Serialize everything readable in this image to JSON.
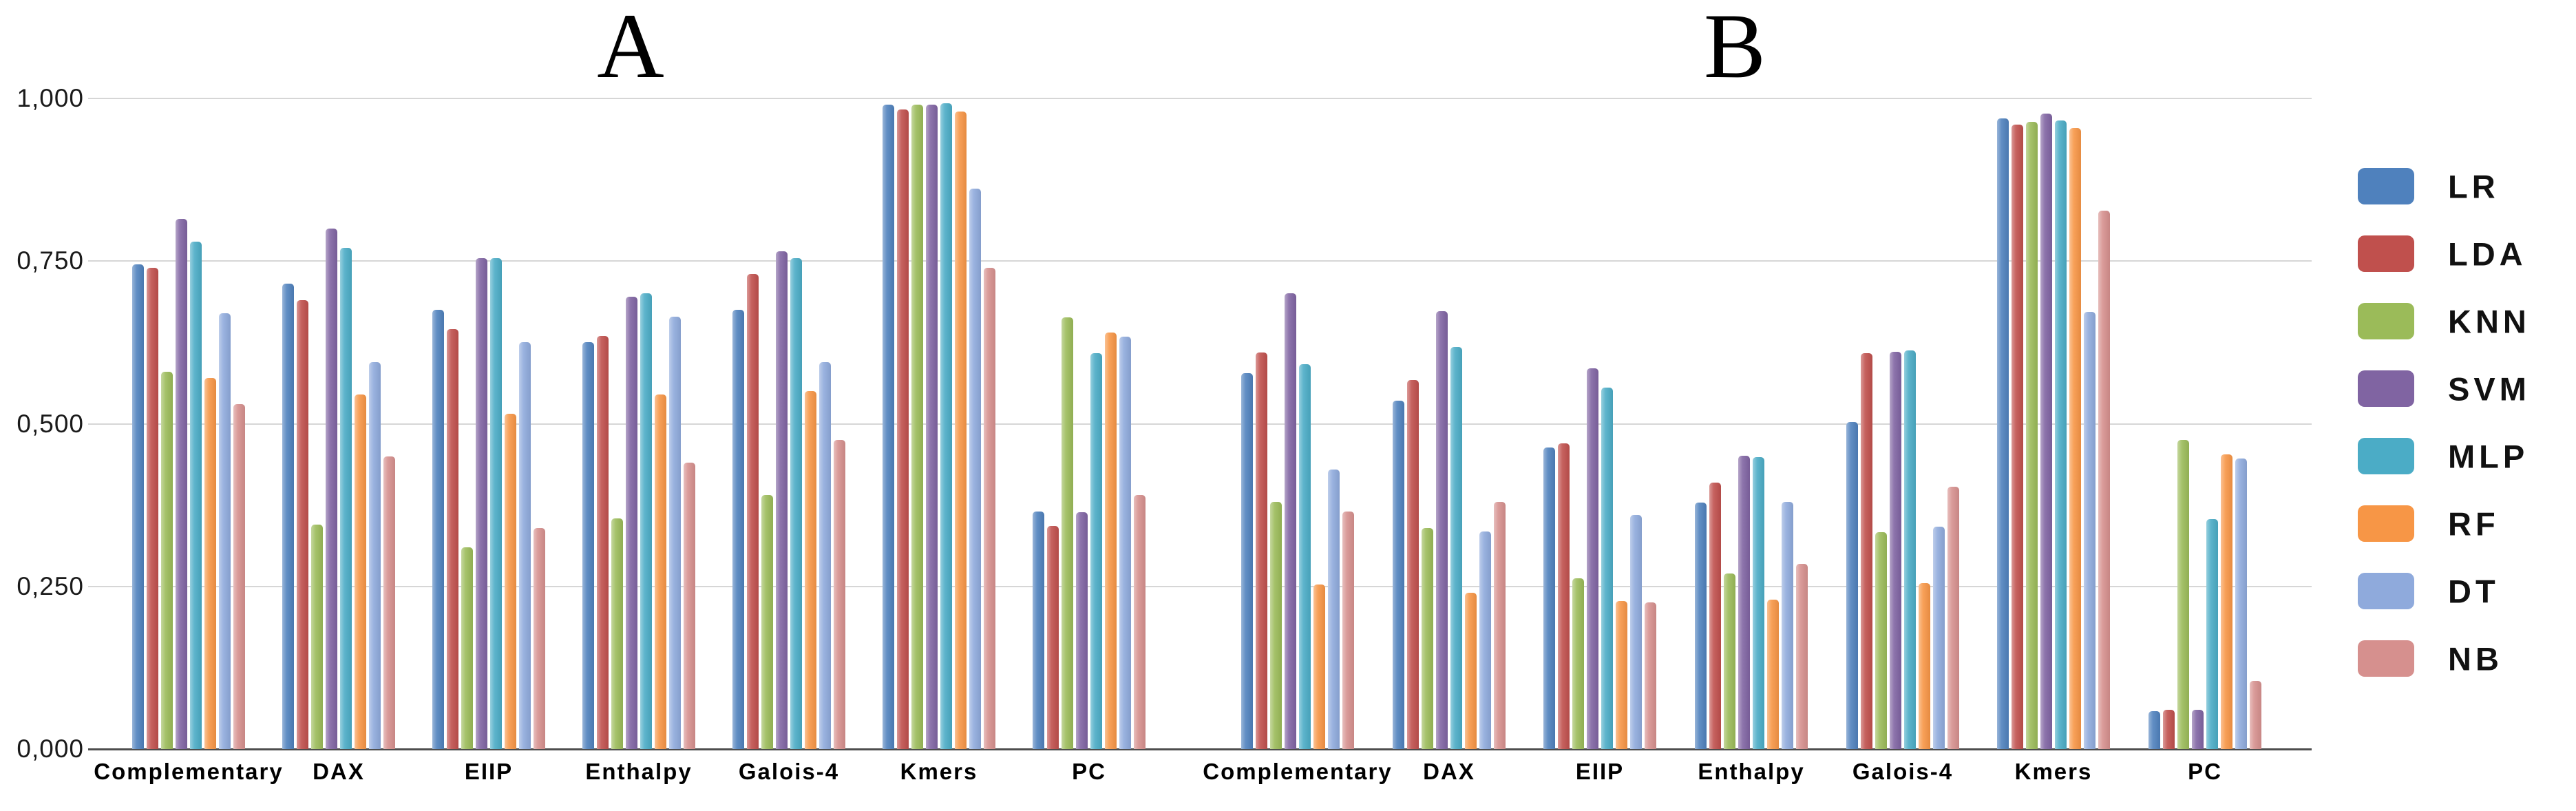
{
  "y_axis": {
    "ticks": [
      {
        "label": "1,000",
        "value": 1.0
      },
      {
        "label": "0,750",
        "value": 0.75
      },
      {
        "label": "0,500",
        "value": 0.5
      },
      {
        "label": "0,250",
        "value": 0.25
      },
      {
        "label": "0,000",
        "value": 0.0
      }
    ],
    "min": 0.0,
    "max": 1.0,
    "gridline_color": "#d6d6d6",
    "baseline_color": "#4d4d4d"
  },
  "legend": {
    "position": "right",
    "items": [
      {
        "label": "LR",
        "color": "#4F81BD"
      },
      {
        "label": "LDA",
        "color": "#C0504D"
      },
      {
        "label": "KNN",
        "color": "#9BBB59"
      },
      {
        "label": "SVM",
        "color": "#8064A2"
      },
      {
        "label": "MLP",
        "color": "#4BACC6"
      },
      {
        "label": "RF",
        "color": "#F79646"
      },
      {
        "label": "DT",
        "color": "#8FAADC"
      },
      {
        "label": "NB",
        "color": "#D6908E"
      }
    ]
  },
  "chart_data": [
    {
      "type": "bar",
      "title": "A",
      "categories": [
        "Complementary",
        "DAX",
        "EIIP",
        "Enthalpy",
        "Galois-4",
        "Kmers",
        "PC"
      ],
      "series": [
        {
          "name": "LR",
          "color": "#4F81BD",
          "values": [
            0.745,
            0.715,
            0.675,
            0.625,
            0.675,
            0.99,
            0.365
          ]
        },
        {
          "name": "LDA",
          "color": "#C0504D",
          "values": [
            0.74,
            0.69,
            0.645,
            0.635,
            0.73,
            0.983,
            0.343
          ]
        },
        {
          "name": "KNN",
          "color": "#9BBB59",
          "values": [
            0.58,
            0.345,
            0.31,
            0.355,
            0.39,
            0.99,
            0.663
          ]
        },
        {
          "name": "SVM",
          "color": "#8064A2",
          "values": [
            0.815,
            0.8,
            0.755,
            0.695,
            0.765,
            0.99,
            0.364
          ]
        },
        {
          "name": "MLP",
          "color": "#4BACC6",
          "values": [
            0.78,
            0.77,
            0.755,
            0.7,
            0.755,
            0.993,
            0.608
          ]
        },
        {
          "name": "RF",
          "color": "#F79646",
          "values": [
            0.57,
            0.545,
            0.515,
            0.545,
            0.55,
            0.98,
            0.64
          ]
        },
        {
          "name": "DT",
          "color": "#8FAADC",
          "values": [
            0.67,
            0.595,
            0.625,
            0.665,
            0.595,
            0.861,
            0.634
          ]
        },
        {
          "name": "NB",
          "color": "#D6908E",
          "values": [
            0.53,
            0.45,
            0.34,
            0.44,
            0.475,
            0.74,
            0.39
          ]
        }
      ],
      "ylim": [
        0,
        1
      ],
      "grid": true,
      "legend_position": "right"
    },
    {
      "type": "bar",
      "title": "B",
      "categories": [
        "Complementary",
        "DAX",
        "EIIP",
        "Enthalpy",
        "Galois-4",
        "Kmers",
        "PC"
      ],
      "series": [
        {
          "name": "LR",
          "color": "#4F81BD",
          "values": [
            0.578,
            0.535,
            0.464,
            0.379,
            0.503,
            0.969,
            0.058
          ]
        },
        {
          "name": "LDA",
          "color": "#C0504D",
          "values": [
            0.61,
            0.567,
            0.47,
            0.41,
            0.608,
            0.96,
            0.06
          ]
        },
        {
          "name": "KNN",
          "color": "#9BBB59",
          "values": [
            0.38,
            0.34,
            0.262,
            0.27,
            0.333,
            0.964,
            0.475
          ]
        },
        {
          "name": "SVM",
          "color": "#8064A2",
          "values": [
            0.7,
            0.673,
            0.585,
            0.451,
            0.611,
            0.977,
            0.06
          ]
        },
        {
          "name": "MLP",
          "color": "#4BACC6",
          "values": [
            0.592,
            0.618,
            0.556,
            0.449,
            0.613,
            0.966,
            0.353
          ]
        },
        {
          "name": "RF",
          "color": "#F79646",
          "values": [
            0.253,
            0.24,
            0.228,
            0.23,
            0.255,
            0.955,
            0.453
          ]
        },
        {
          "name": "DT",
          "color": "#8FAADC",
          "values": [
            0.43,
            0.334,
            0.36,
            0.38,
            0.342,
            0.672,
            0.447
          ]
        },
        {
          "name": "NB",
          "color": "#D6908E",
          "values": [
            0.365,
            0.38,
            0.225,
            0.285,
            0.403,
            0.828,
            0.105
          ]
        }
      ],
      "ylim": [
        0,
        1
      ],
      "grid": true,
      "legend_position": "right"
    }
  ]
}
